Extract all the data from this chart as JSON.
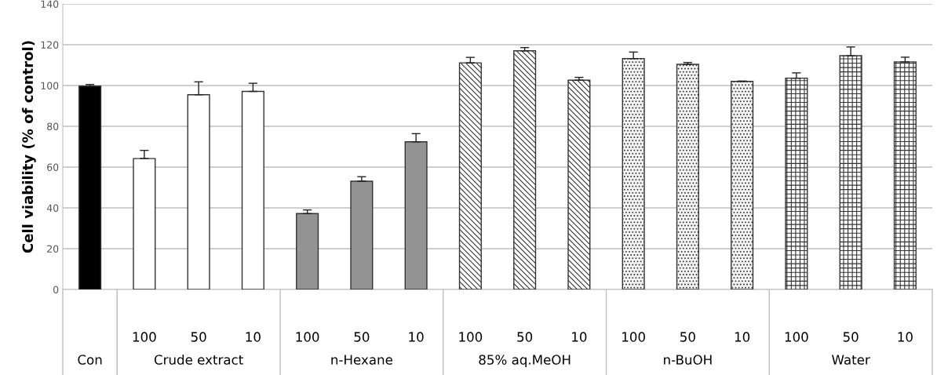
{
  "chart_data": {
    "type": "bar",
    "ylabel": "Cell viability (% of control)",
    "categories": [
      null,
      "100",
      "50",
      "10",
      "100",
      "50",
      "10",
      "100",
      "50",
      "10",
      "100",
      "50",
      "10",
      "100",
      "50",
      "10"
    ],
    "series": [
      {
        "color": "#000000",
        "values": [
          99.7,
          null,
          null,
          null,
          null,
          null,
          null,
          null,
          null,
          null,
          null,
          null,
          null,
          null,
          null,
          null
        ],
        "errors": [
          0.8,
          null,
          null,
          null,
          null,
          null,
          null,
          null,
          null,
          null,
          null,
          null,
          null,
          null,
          null,
          null
        ]
      },
      {
        "color": "#ffffff",
        "values": [
          null,
          64.2,
          95.5,
          97.1,
          null,
          null,
          null,
          null,
          null,
          null,
          null,
          null,
          null,
          null,
          null,
          null
        ],
        "errors": [
          null,
          4,
          6.3,
          4,
          null,
          null,
          null,
          null,
          null,
          null,
          null,
          null,
          null,
          null,
          null,
          null
        ]
      },
      {
        "color": "#939393",
        "values": [
          null,
          null,
          null,
          null,
          37.2,
          53.1,
          72.4,
          null,
          null,
          null,
          null,
          null,
          null,
          null,
          null,
          null
        ],
        "errors": [
          null,
          null,
          null,
          null,
          1.8,
          2.2,
          4,
          null,
          null,
          null,
          null,
          null,
          null,
          null,
          null,
          null
        ]
      },
      {
        "color": "#333333",
        "values": [
          null,
          null,
          null,
          null,
          null,
          null,
          null,
          111.1,
          117,
          102.6,
          null,
          null,
          null,
          null,
          null,
          null
        ],
        "errors": [
          null,
          null,
          null,
          null,
          null,
          null,
          null,
          2.7,
          1.6,
          1.4,
          null,
          null,
          null,
          null,
          null,
          null
        ]
      },
      {
        "color": "#333333",
        "values": [
          null,
          null,
          null,
          null,
          null,
          null,
          null,
          null,
          null,
          null,
          113.2,
          110.4,
          102,
          null,
          null,
          null
        ],
        "errors": [
          null,
          null,
          null,
          null,
          null,
          null,
          null,
          null,
          null,
          null,
          3.2,
          0.9,
          0.2,
          null,
          null,
          null
        ]
      },
      {
        "color": "#333333",
        "values": [
          null,
          null,
          null,
          null,
          null,
          null,
          null,
          null,
          null,
          null,
          null,
          null,
          null,
          103.6,
          114.6,
          111.6
        ],
        "errors": [
          null,
          null,
          null,
          null,
          null,
          null,
          null,
          null,
          null,
          null,
          null,
          null,
          null,
          2.6,
          4.3,
          2.3
        ]
      }
    ],
    "ylim": [
      0,
      140
    ],
    "yticks": [
      0,
      20,
      40,
      60,
      80,
      100,
      120,
      140
    ],
    "grid": "y",
    "annotations": [
      "Con",
      "Crude extract",
      "n-Hexane",
      "85% aq.MeOH",
      "n-BuOH",
      "Water"
    ]
  }
}
